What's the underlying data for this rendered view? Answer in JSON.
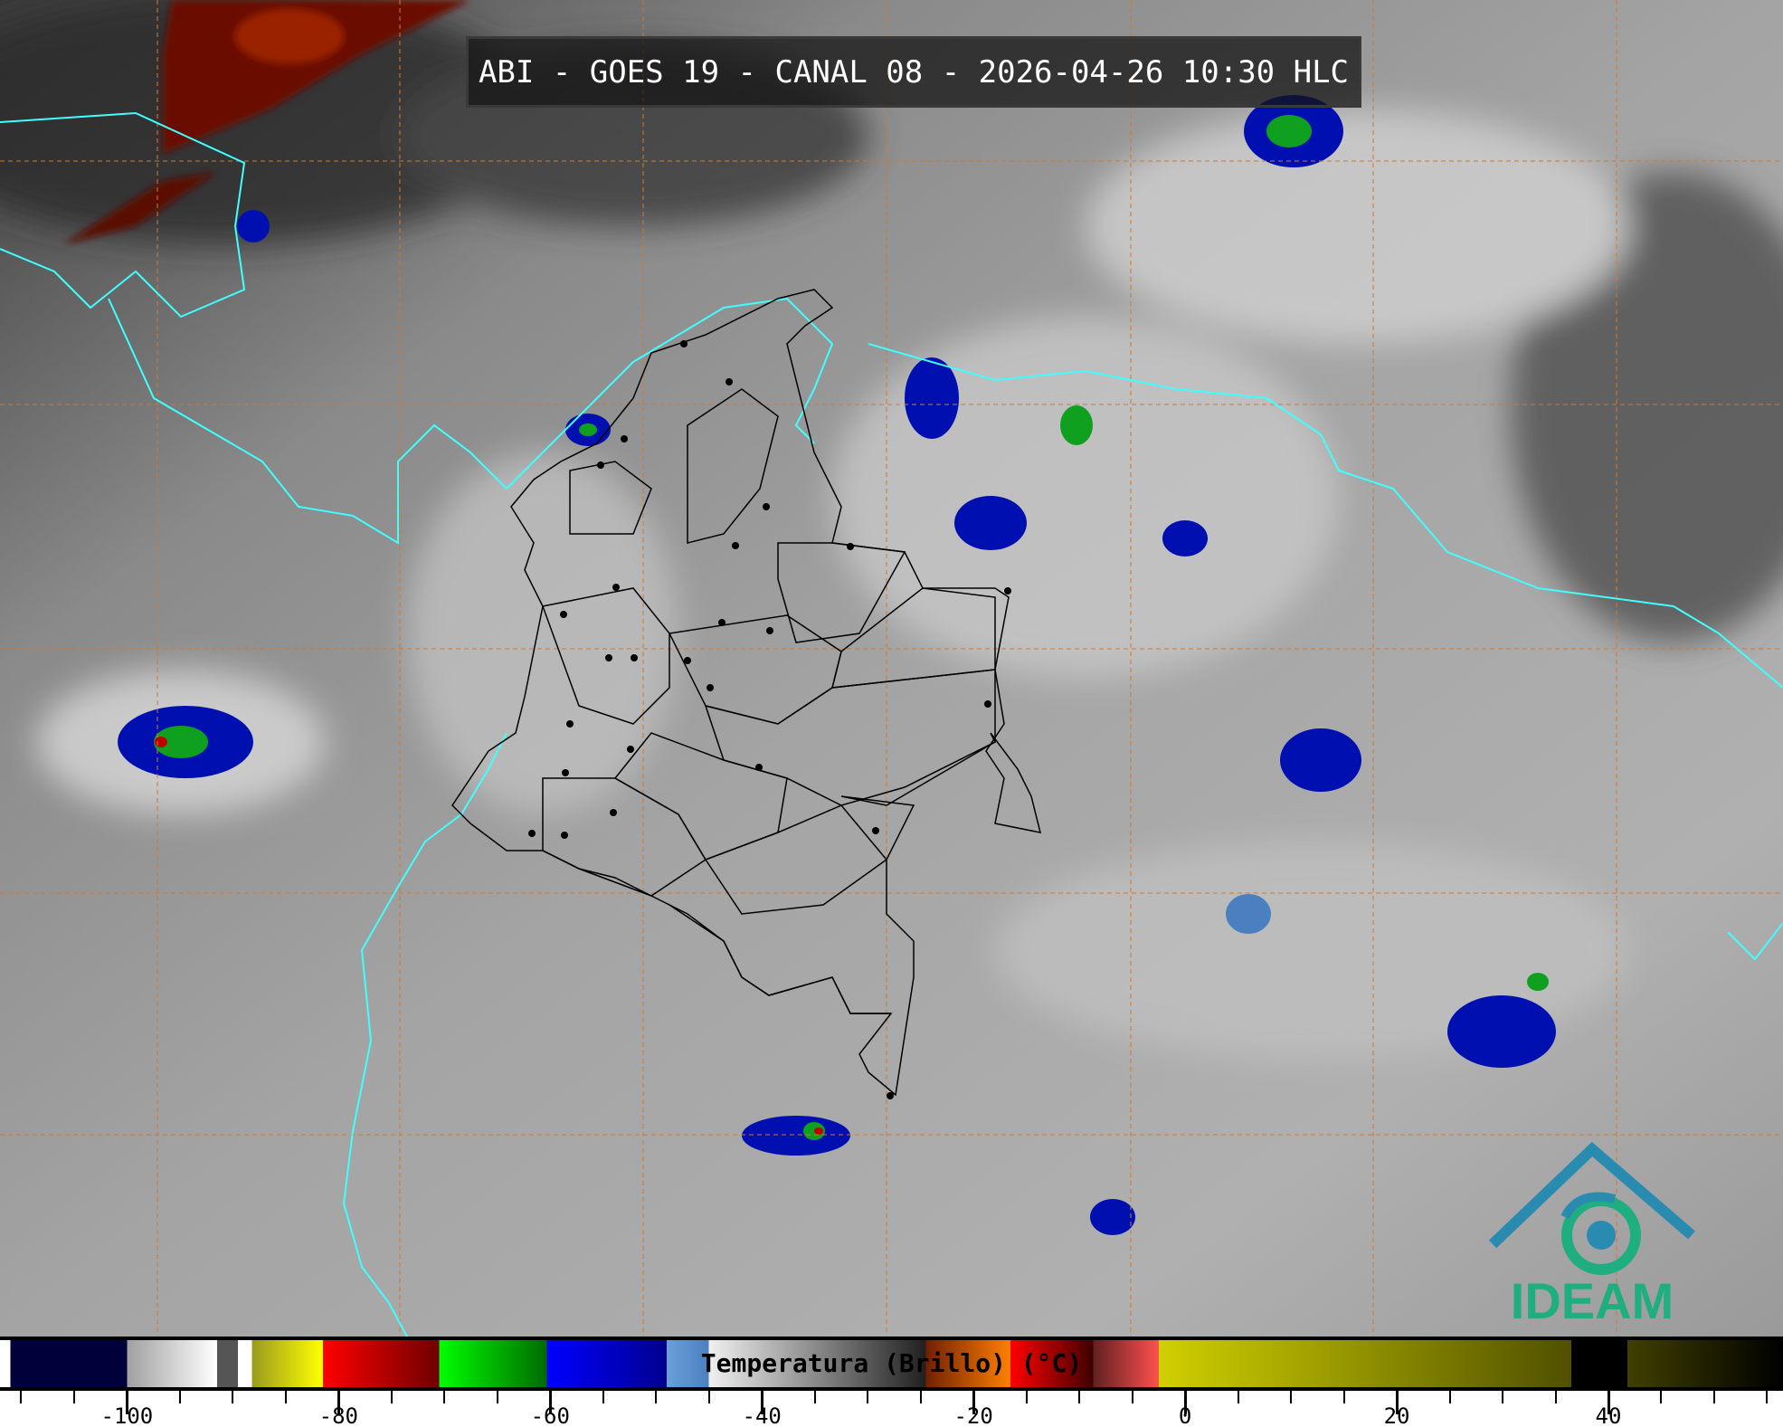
{
  "title": "ABI - GOES 19 - CANAL 08 - 2026-04-26 10:30 HLC",
  "colorbar": {
    "label": "Temperatura (Brillo) (°C)",
    "range": [
      -112,
      56.5
    ],
    "ticks": [
      -100,
      -80,
      -60,
      -40,
      -20,
      0,
      20,
      40
    ],
    "tick_labels": [
      "-100",
      "-80",
      "-60",
      "-40",
      "-20",
      "0",
      "20",
      "40"
    ],
    "stops": [
      {
        "from": -112,
        "to": -111,
        "color": "#ffffff"
      },
      {
        "from": -111,
        "to": -100,
        "color": "#00003a"
      },
      {
        "from": -100,
        "to": -91.5,
        "color": "#a0a0a0",
        "to_color": "#ffffff"
      },
      {
        "from": -91.5,
        "to": -89.5,
        "color": "#555555"
      },
      {
        "from": -89.5,
        "to": -88.2,
        "color": "#ffffff"
      },
      {
        "from": -88.2,
        "to": -81.5,
        "color": "#9a9a20",
        "to_color": "#ffff00"
      },
      {
        "from": -81.5,
        "to": -70.5,
        "color": "#ff0000",
        "to_color": "#700000"
      },
      {
        "from": -70.5,
        "to": -60.3,
        "color": "#00ff00",
        "to_color": "#006a00"
      },
      {
        "from": -60.3,
        "to": -49,
        "color": "#0000ff",
        "to_color": "#000090"
      },
      {
        "from": -49,
        "to": -45,
        "color": "#6aa0d8",
        "to_color": "#4a80c0"
      },
      {
        "from": -45,
        "to": -24.5,
        "color": "#f0f0f0",
        "to_color": "#202020"
      },
      {
        "from": -24.5,
        "to": -16.5,
        "color": "#702000",
        "to_color": "#ff8000"
      },
      {
        "from": -16.5,
        "to": -8.7,
        "color": "#ff0000",
        "to_color": "#400000"
      },
      {
        "from": -8.7,
        "to": -2.5,
        "color": "#602020",
        "to_color": "#ff5050"
      },
      {
        "from": -2.5,
        "to": 36.5,
        "color": "#d0d000",
        "to_color": "#505000"
      },
      {
        "from": 36.5,
        "to": 41.8,
        "color": "#000000"
      },
      {
        "from": 41.8,
        "to": 56.5,
        "color": "#404000",
        "to_color": "#000000"
      }
    ]
  },
  "logo": {
    "text": "IDEAM",
    "color": "#1fae7f",
    "accent": "#2a8bb0"
  },
  "map": {
    "coastline_color": "#40ffff",
    "grid_color": "#d07a30",
    "border_color": "#000000"
  }
}
